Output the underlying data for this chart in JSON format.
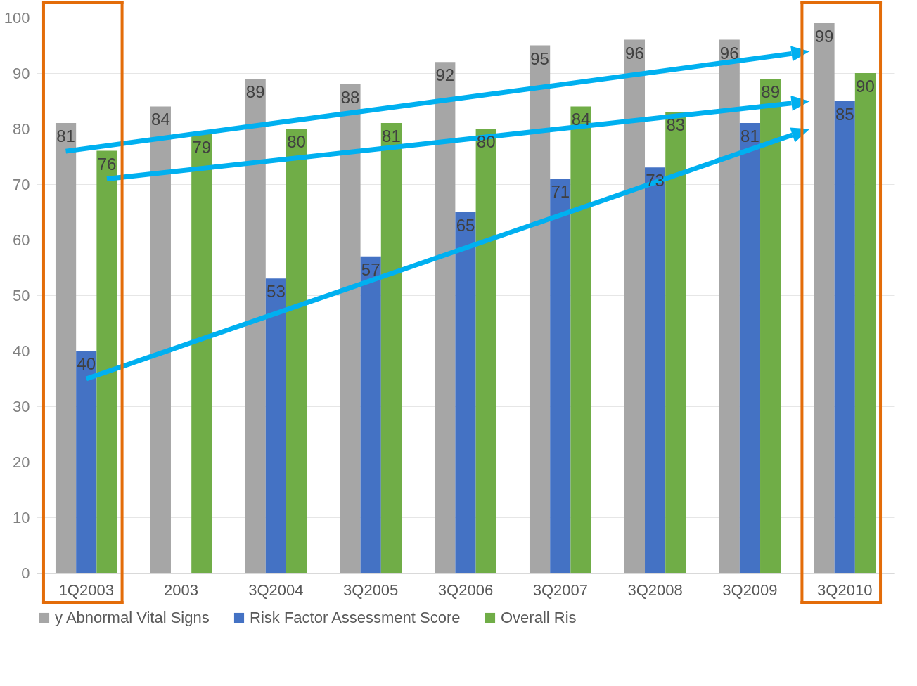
{
  "chart_data": {
    "type": "bar",
    "categories": [
      "1Q2003",
      "2003",
      "3Q2004",
      "3Q2005",
      "3Q2006",
      "3Q2007",
      "3Q2008",
      "3Q2009",
      "3Q2010"
    ],
    "series": [
      {
        "name": "y Abnormal Vital Signs",
        "color": "#a6a6a6",
        "values": [
          81,
          84,
          89,
          88,
          92,
          95,
          96,
          96,
          99
        ]
      },
      {
        "name": "Risk Factor Assessment Score",
        "color": "#4472c4",
        "values": [
          40,
          null,
          53,
          57,
          65,
          71,
          73,
          81,
          85
        ]
      },
      {
        "name": "Overall Ris",
        "color": "#70ad47",
        "values": [
          76,
          79,
          80,
          81,
          80,
          84,
          83,
          89,
          90
        ]
      }
    ],
    "ylim": [
      0,
      100
    ],
    "yticks": [
      0,
      10,
      20,
      30,
      40,
      50,
      60,
      70,
      80,
      90,
      100
    ],
    "grid": "y",
    "legend": "bottom",
    "data_labels": true
  }
}
